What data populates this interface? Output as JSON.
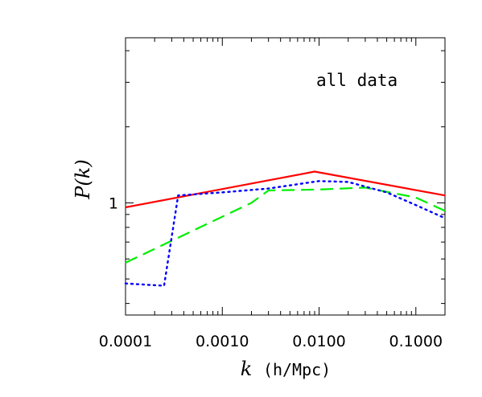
{
  "chart_data": {
    "type": "line",
    "xscale": "log",
    "yscale": "log",
    "xlim": [
      0.0001,
      0.2
    ],
    "ylim": [
      0.36,
      4.5
    ],
    "grid": false,
    "legend": "none",
    "annotation": "all data",
    "xlabel_main": "k",
    "xlabel_unit": "(h/Mpc)",
    "ylabel": "P(k)",
    "x_tick_labels": [
      "0.0001",
      "0.0010",
      "0.0100",
      "0.1000"
    ],
    "x_tick_values": [
      0.0001,
      0.001,
      0.01,
      0.1
    ],
    "y_tick_labels": [
      "1"
    ],
    "y_tick_values": [
      1
    ],
    "series": [
      {
        "color": "#ff0000",
        "style": "solid",
        "x": [
          0.0001,
          0.009,
          0.2
        ],
        "y": [
          0.96,
          1.33,
          1.07
        ]
      },
      {
        "color": "#00ee00",
        "style": "dashed",
        "x": [
          0.0001,
          0.002,
          0.003,
          0.01,
          0.03,
          0.1,
          0.2
        ],
        "y": [
          0.58,
          1.0,
          1.12,
          1.13,
          1.15,
          1.05,
          0.93
        ]
      },
      {
        "color": "#0000ff",
        "style": "dotted",
        "x": [
          0.0001,
          0.00025,
          0.00035,
          0.001,
          0.003,
          0.01,
          0.02,
          0.05,
          0.1,
          0.2
        ],
        "y": [
          0.48,
          0.47,
          1.07,
          1.1,
          1.14,
          1.22,
          1.21,
          1.1,
          0.98,
          0.87
        ]
      }
    ]
  }
}
